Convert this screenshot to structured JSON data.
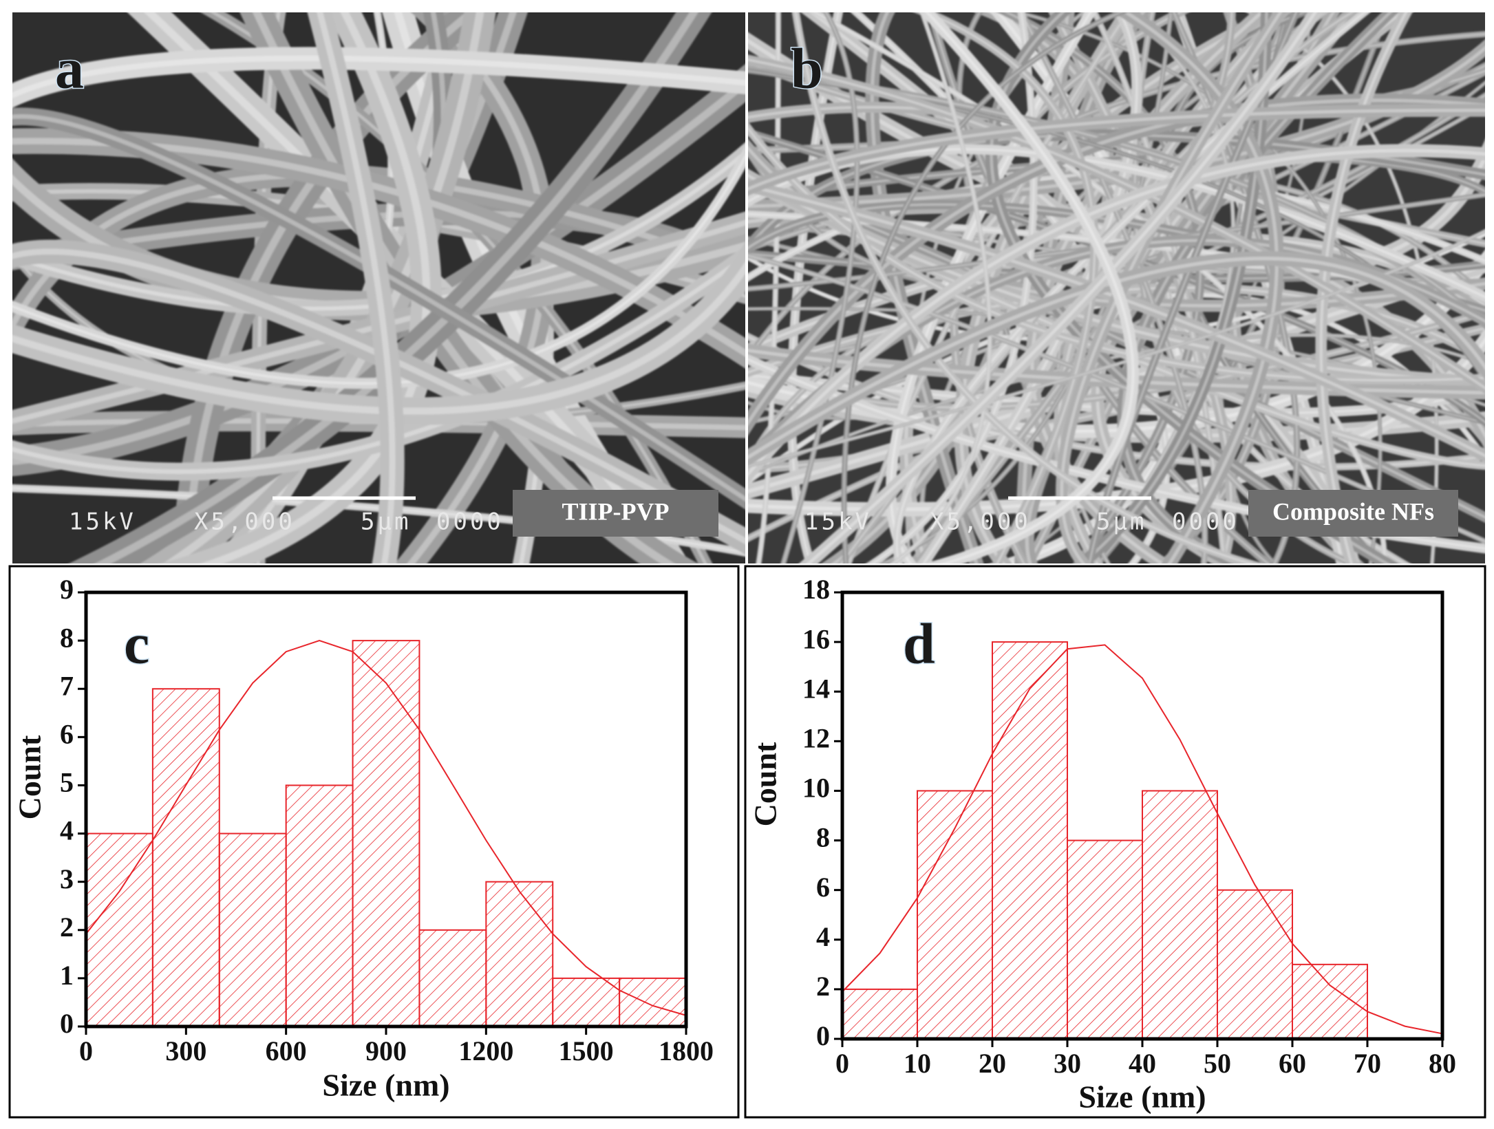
{
  "images": [
    {
      "label": "a",
      "info": [
        "15kV",
        "X5,000",
        "5μm",
        "0000"
      ],
      "caption": "TIIP-PVP"
    },
    {
      "label": "b",
      "info": [
        "15kV",
        "X5,000",
        "5μm",
        "0000"
      ],
      "caption": "Composite NFs"
    }
  ],
  "chart_data": [
    {
      "type": "histogram",
      "panel": "c",
      "x_label": "Size (nm)",
      "y_label": "Count",
      "bins": [
        0,
        200,
        400,
        600,
        800,
        1000,
        1200,
        1400,
        1600,
        1800
      ],
      "values": [
        4,
        7,
        4,
        5,
        8,
        2,
        3,
        1,
        1
      ],
      "color": "#e8242a",
      "fit": {
        "x": [
          0,
          100,
          200,
          300,
          400,
          500,
          600,
          700,
          800,
          900,
          1000,
          1100,
          1200,
          1300,
          1400,
          1500,
          1600,
          1700,
          1800
        ],
        "values": [
          1.92,
          2.8,
          3.86,
          5.01,
          6.15,
          7.12,
          7.77,
          8,
          7.77,
          7.12,
          6.15,
          5.01,
          3.86,
          2.8,
          1.92,
          1.24,
          0.75,
          0.43,
          0.23
        ],
        "color": "#e8242a"
      },
      "xlim": [
        0,
        1800
      ],
      "xticks": [
        0,
        300,
        600,
        900,
        1200,
        1500,
        1800
      ],
      "ylim": [
        0,
        9
      ],
      "yticks": [
        0,
        1,
        2,
        3,
        4,
        5,
        6,
        7,
        8,
        9
      ]
    },
    {
      "type": "histogram",
      "panel": "d",
      "x_label": "Size (nm)",
      "y_label": "Count",
      "bins": [
        0,
        10,
        20,
        30,
        40,
        50,
        60,
        70
      ],
      "values": [
        2,
        10,
        16,
        8,
        10,
        6,
        3
      ],
      "color": "#e8242a",
      "fit": {
        "x": [
          0,
          5,
          10,
          15,
          20,
          25,
          30,
          35,
          40,
          45,
          50,
          55,
          60,
          65,
          70,
          75,
          80
        ],
        "values": [
          1.9,
          3.45,
          5.68,
          8.49,
          11.49,
          14.12,
          15.72,
          15.88,
          14.54,
          12.07,
          9.09,
          6.21,
          3.84,
          2.16,
          1.1,
          0.51,
          0.21
        ],
        "color": "#e8242a"
      },
      "xlim": [
        0,
        80
      ],
      "xticks": [
        0,
        10,
        20,
        30,
        40,
        50,
        60,
        70,
        80
      ],
      "ylim": [
        0,
        18
      ],
      "yticks": [
        0,
        2,
        4,
        6,
        8,
        10,
        12,
        14,
        16,
        18
      ]
    }
  ]
}
